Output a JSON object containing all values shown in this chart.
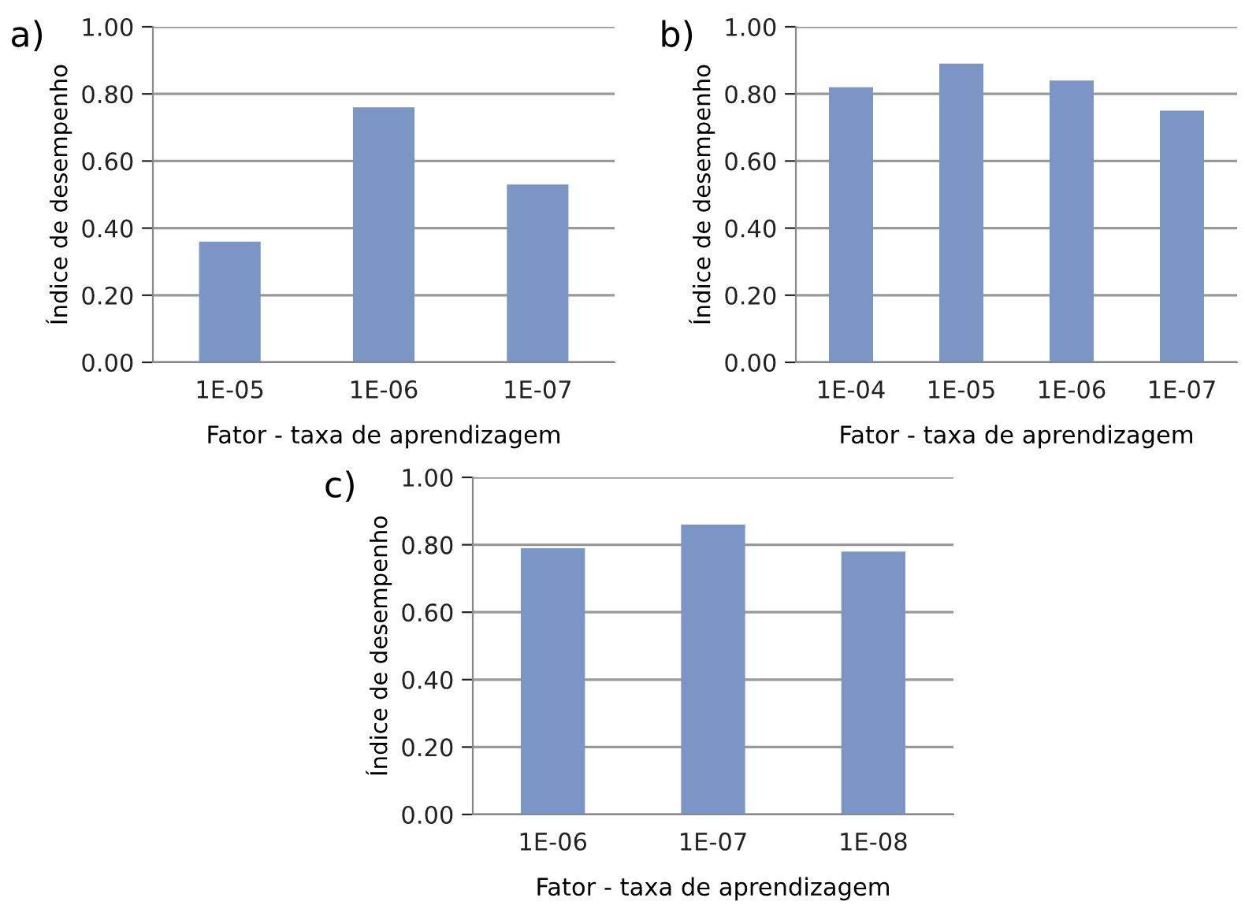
{
  "chart_data": [
    {
      "type": "bar",
      "title": "a)",
      "xlabel": "Fator - taxa de aprendizagem",
      "ylabel": "Índice de desempenho",
      "categories": [
        "1E-05",
        "1E-06",
        "1E-07"
      ],
      "values": [
        0.36,
        0.76,
        0.53
      ],
      "color": "#7b96c4",
      "ylim": [
        0,
        1
      ],
      "yticks": [
        {
          "value": 0,
          "label": "0.00"
        },
        {
          "value": 0.2,
          "label": "0.20"
        },
        {
          "value": 0.4,
          "label": "0.40"
        },
        {
          "value": 0.6,
          "label": "0.60"
        },
        {
          "value": 0.8,
          "label": "0.80"
        },
        {
          "value": 1,
          "label": "1.00"
        }
      ],
      "grid": "y"
    },
    {
      "type": "bar",
      "title": "b)",
      "xlabel": "Fator - taxa de aprendizagem",
      "ylabel": "Índice de desempenho",
      "categories": [
        "1E-04",
        "1E-05",
        "1E-06",
        "1E-07"
      ],
      "values": [
        0.82,
        0.89,
        0.84,
        0.75
      ],
      "color": "#7b96c4",
      "ylim": [
        0,
        1
      ],
      "yticks": [
        {
          "value": 0,
          "label": "0.00"
        },
        {
          "value": 0.2,
          "label": "0.20"
        },
        {
          "value": 0.4,
          "label": "0.40"
        },
        {
          "value": 0.6,
          "label": "0.60"
        },
        {
          "value": 0.8,
          "label": "0.80"
        },
        {
          "value": 1,
          "label": "1.00"
        }
      ],
      "grid": "y"
    },
    {
      "type": "bar",
      "title": "c)",
      "xlabel": "Fator - taxa de aprendizagem",
      "ylabel": "Índice de desempenho",
      "categories": [
        "1E-06",
        "1E-07",
        "1E-08"
      ],
      "values": [
        0.79,
        0.86,
        0.78
      ],
      "color": "#7b96c4",
      "ylim": [
        0,
        1
      ],
      "yticks": [
        {
          "value": 0,
          "label": "0.00"
        },
        {
          "value": 0.2,
          "label": "0.20"
        },
        {
          "value": 0.4,
          "label": "0.40"
        },
        {
          "value": 0.6,
          "label": "0.60"
        },
        {
          "value": 0.8,
          "label": "0.80"
        },
        {
          "value": 1,
          "label": "1.00"
        }
      ],
      "grid": "y"
    }
  ]
}
